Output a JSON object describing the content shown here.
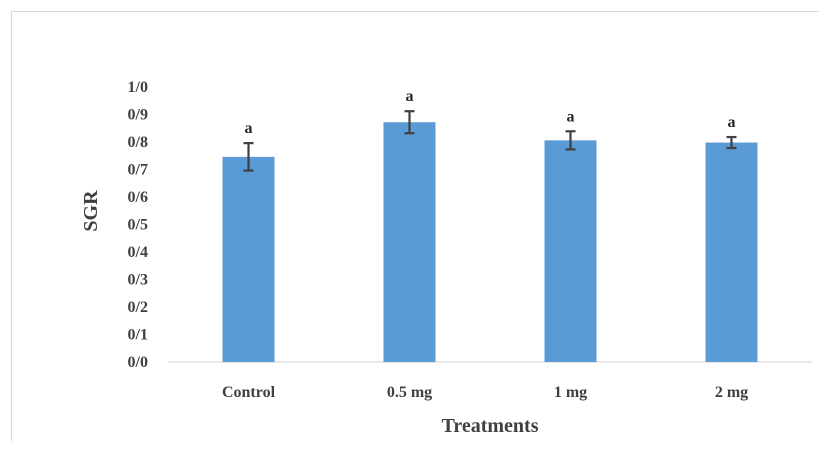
{
  "chart_data": {
    "type": "bar",
    "categories": [
      "Control",
      "0.5 mg",
      "1 mg",
      "2 mg"
    ],
    "values": [
      0.746,
      0.872,
      0.806,
      0.798
    ],
    "errors": [
      0.05,
      0.04,
      0.033,
      0.02
    ],
    "significance_labels": [
      "a",
      "a",
      "a",
      "a"
    ],
    "xlabel": "Treatments",
    "ylabel": "SGR",
    "ylim": [
      0,
      1
    ],
    "yticks": [
      0,
      0.1,
      0.2,
      0.3,
      0.4,
      0.5,
      0.6,
      0.7,
      0.8,
      0.9,
      1.0
    ],
    "ytick_labels": [
      "0/0",
      "0/1",
      "0/2",
      "0/3",
      "0/4",
      "0/5",
      "0/6",
      "0/7",
      "0/8",
      "0/9",
      "1/0"
    ],
    "grid": false,
    "bar_color": "#5b9bd5",
    "errorbar_color": "#404040",
    "axis_color": "#d9d9d9"
  }
}
